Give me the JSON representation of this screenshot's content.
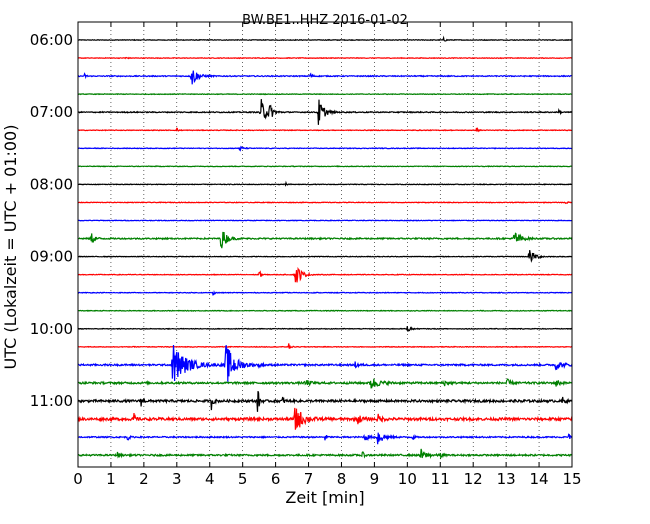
{
  "chart_data": {
    "type": "line",
    "title": "BW.BE1..HHZ 2016-01-02",
    "xlabel": "Zeit  [min]",
    "ylabel": "UTC (Lokalzeit = UTC + 01:00)",
    "xlim": [
      0,
      15
    ],
    "x_ticks": [
      0,
      1,
      2,
      3,
      4,
      5,
      6,
      7,
      8,
      9,
      10,
      11,
      12,
      13,
      14,
      15
    ],
    "y_tick_labels": [
      {
        "trace_index": 0,
        "label": "06:00"
      },
      {
        "trace_index": 4,
        "label": "07:00"
      },
      {
        "trace_index": 8,
        "label": "08:00"
      },
      {
        "trace_index": 12,
        "label": "09:00"
      },
      {
        "trace_index": 16,
        "label": "10:00"
      },
      {
        "trace_index": 20,
        "label": "11:00"
      }
    ],
    "grid": {
      "vertical": true,
      "style": "dotted"
    },
    "color_cycle": [
      "#000000",
      "#ff0000",
      "#0000ff",
      "#008000"
    ],
    "series": [
      {
        "start": "06:00",
        "noise": 0.02,
        "events": [
          {
            "t": 11.1,
            "a": 0.15,
            "d": 0.05
          }
        ]
      },
      {
        "start": "06:15",
        "noise": 0.02,
        "events": [
          {
            "t": 1.4,
            "a": 0.2,
            "d": 0.05
          }
        ]
      },
      {
        "start": "06:30",
        "noise": 0.03,
        "events": [
          {
            "t": 0.2,
            "a": 0.15,
            "d": 0.05
          },
          {
            "t": 3.45,
            "a": 0.7,
            "d": 0.15
          },
          {
            "t": 7.05,
            "a": 0.3,
            "d": 0.05
          }
        ]
      },
      {
        "start": "06:45",
        "noise": 0.02,
        "events": []
      },
      {
        "start": "07:00",
        "noise": 0.03,
        "events": [
          {
            "t": 5.55,
            "a": 0.9,
            "d": 0.15
          },
          {
            "t": 5.8,
            "a": 0.5,
            "d": 0.1
          },
          {
            "t": 7.3,
            "a": 0.9,
            "d": 0.15
          },
          {
            "t": 14.6,
            "a": 0.15,
            "d": 0.05
          }
        ]
      },
      {
        "start": "07:15",
        "noise": 0.02,
        "events": [
          {
            "t": 3.0,
            "a": 0.15,
            "d": 0.05
          },
          {
            "t": 12.1,
            "a": 0.15,
            "d": 0.05
          }
        ]
      },
      {
        "start": "07:30",
        "noise": 0.02,
        "events": [
          {
            "t": 4.9,
            "a": 0.15,
            "d": 0.1
          }
        ]
      },
      {
        "start": "07:45",
        "noise": 0.02,
        "events": []
      },
      {
        "start": "08:00",
        "noise": 0.02,
        "events": [
          {
            "t": 6.3,
            "a": 0.12,
            "d": 0.05
          }
        ]
      },
      {
        "start": "08:15",
        "noise": 0.02,
        "events": [
          {
            "t": 14.8,
            "a": 0.12,
            "d": 0.05
          }
        ]
      },
      {
        "start": "08:30",
        "noise": 0.02,
        "events": []
      },
      {
        "start": "08:45",
        "noise": 0.04,
        "events": [
          {
            "t": 0.4,
            "a": 0.4,
            "d": 0.1
          },
          {
            "t": 4.35,
            "a": 0.7,
            "d": 0.15
          },
          {
            "t": 13.25,
            "a": 0.6,
            "d": 0.15
          }
        ]
      },
      {
        "start": "09:00",
        "noise": 0.02,
        "events": [
          {
            "t": 13.7,
            "a": 0.5,
            "d": 0.15
          }
        ]
      },
      {
        "start": "09:15",
        "noise": 0.02,
        "events": [
          {
            "t": 5.5,
            "a": 0.3,
            "d": 0.05
          },
          {
            "t": 6.6,
            "a": 0.8,
            "d": 0.15
          }
        ]
      },
      {
        "start": "09:30",
        "noise": 0.02,
        "events": [
          {
            "t": 4.1,
            "a": 0.15,
            "d": 0.05
          }
        ]
      },
      {
        "start": "09:45",
        "noise": 0.02,
        "events": []
      },
      {
        "start": "10:00",
        "noise": 0.02,
        "events": [
          {
            "t": 10.0,
            "a": 0.2,
            "d": 0.1
          }
        ]
      },
      {
        "start": "10:15",
        "noise": 0.02,
        "events": [
          {
            "t": 6.4,
            "a": 0.2,
            "d": 0.05
          }
        ]
      },
      {
        "start": "10:30",
        "noise": 0.05,
        "events": [
          {
            "t": 2.9,
            "a": 1.3,
            "d": 0.35
          },
          {
            "t": 4.5,
            "a": 1.3,
            "d": 0.25
          },
          {
            "t": 5.5,
            "a": 0.2,
            "d": 0.05
          },
          {
            "t": 8.4,
            "a": 0.2,
            "d": 0.1
          },
          {
            "t": 14.5,
            "a": 0.3,
            "d": 0.2
          }
        ]
      },
      {
        "start": "10:45",
        "noise": 0.06,
        "events": [
          {
            "t": 6.9,
            "a": 0.3,
            "d": 0.1
          },
          {
            "t": 8.9,
            "a": 0.4,
            "d": 0.2
          },
          {
            "t": 11.1,
            "a": 0.2,
            "d": 0.1
          },
          {
            "t": 13.0,
            "a": 0.3,
            "d": 0.1
          },
          {
            "t": 14.5,
            "a": 0.3,
            "d": 0.1
          }
        ]
      },
      {
        "start": "11:00",
        "noise": 0.07,
        "events": [
          {
            "t": 1.9,
            "a": 0.4,
            "d": 0.05
          },
          {
            "t": 4.05,
            "a": 0.5,
            "d": 0.05
          },
          {
            "t": 5.45,
            "a": 0.9,
            "d": 0.05
          },
          {
            "t": 6.2,
            "a": 0.3,
            "d": 0.05
          },
          {
            "t": 13.45,
            "a": 0.3,
            "d": 0.05
          },
          {
            "t": 14.7,
            "a": 0.3,
            "d": 0.05
          }
        ]
      },
      {
        "start": "11:15",
        "noise": 0.08,
        "events": [
          {
            "t": 1.7,
            "a": 0.3,
            "d": 0.05
          },
          {
            "t": 6.6,
            "a": 0.9,
            "d": 0.2
          },
          {
            "t": 8.5,
            "a": 0.3,
            "d": 0.1
          },
          {
            "t": 9.1,
            "a": 0.3,
            "d": 0.1
          }
        ]
      },
      {
        "start": "11:30",
        "noise": 0.04,
        "events": [
          {
            "t": 1.5,
            "a": 0.25,
            "d": 0.05
          },
          {
            "t": 7.5,
            "a": 0.25,
            "d": 0.05
          },
          {
            "t": 8.7,
            "a": 0.3,
            "d": 0.1
          },
          {
            "t": 9.1,
            "a": 0.6,
            "d": 0.15
          },
          {
            "t": 10.15,
            "a": 0.2,
            "d": 0.05
          },
          {
            "t": 14.9,
            "a": 0.2,
            "d": 0.05
          }
        ]
      },
      {
        "start": "11:45",
        "noise": 0.05,
        "events": [
          {
            "t": 1.2,
            "a": 0.2,
            "d": 0.05
          },
          {
            "t": 8.6,
            "a": 0.4,
            "d": 0.05
          },
          {
            "t": 10.4,
            "a": 0.4,
            "d": 0.15
          },
          {
            "t": 11.0,
            "a": 0.2,
            "d": 0.05
          }
        ]
      }
    ]
  }
}
